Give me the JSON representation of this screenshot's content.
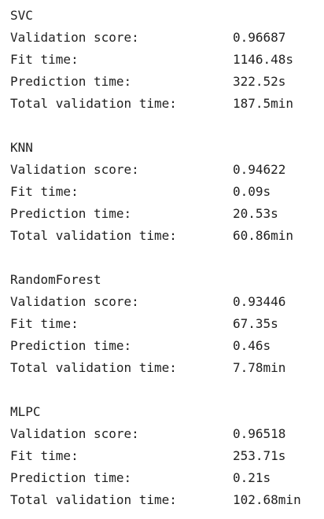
{
  "models": [
    {
      "name": "SVC",
      "rows": [
        {
          "label": "Validation score:",
          "value": "0.96687"
        },
        {
          "label": "Fit time:",
          "value": "1146.48s"
        },
        {
          "label": "Prediction time:",
          "value": "322.52s"
        },
        {
          "label": "Total validation time:",
          "value": "187.5min"
        }
      ]
    },
    {
      "name": "KNN",
      "rows": [
        {
          "label": "Validation score:",
          "value": "0.94622"
        },
        {
          "label": "Fit time:",
          "value": "0.09s"
        },
        {
          "label": "Prediction time:",
          "value": "20.53s"
        },
        {
          "label": "Total validation time:",
          "value": "60.86min"
        }
      ]
    },
    {
      "name": "RandomForest",
      "rows": [
        {
          "label": "Validation score:",
          "value": "0.93446"
        },
        {
          "label": "Fit time:",
          "value": "67.35s"
        },
        {
          "label": "Prediction time:",
          "value": "0.46s"
        },
        {
          "label": "Total validation time:",
          "value": "7.78min"
        }
      ]
    },
    {
      "name": "MLPC",
      "rows": [
        {
          "label": "Validation score:",
          "value": "0.96518"
        },
        {
          "label": "Fit time:",
          "value": "253.71s"
        },
        {
          "label": "Prediction time:",
          "value": "0.21s"
        },
        {
          "label": "Total validation time:",
          "value": "102.68min"
        }
      ]
    }
  ]
}
